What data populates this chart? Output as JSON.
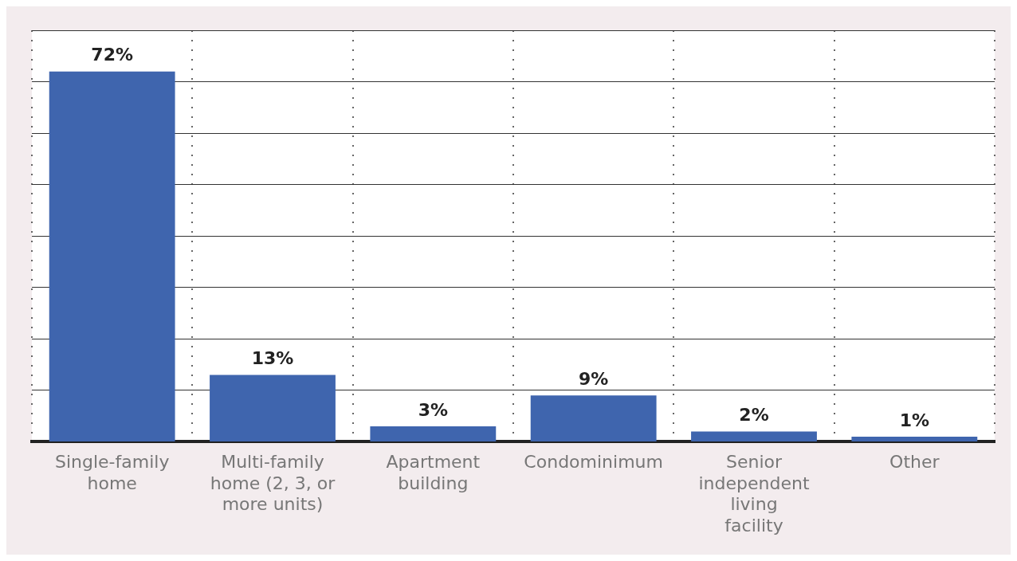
{
  "chart_data": {
    "type": "bar",
    "categories": [
      "Single-family home",
      "Multi-family home (2, 3, or more units)",
      "Apartment building",
      "Condominimum",
      "Senior independent living facility",
      "Other"
    ],
    "values": [
      72,
      13,
      3,
      9,
      2,
      1
    ],
    "color": "#3f65ae",
    "value_labels": [
      "72%",
      "13%",
      "3%",
      "9%",
      "2%",
      "1%"
    ],
    "tick_labels": "x",
    "grid": true
  }
}
